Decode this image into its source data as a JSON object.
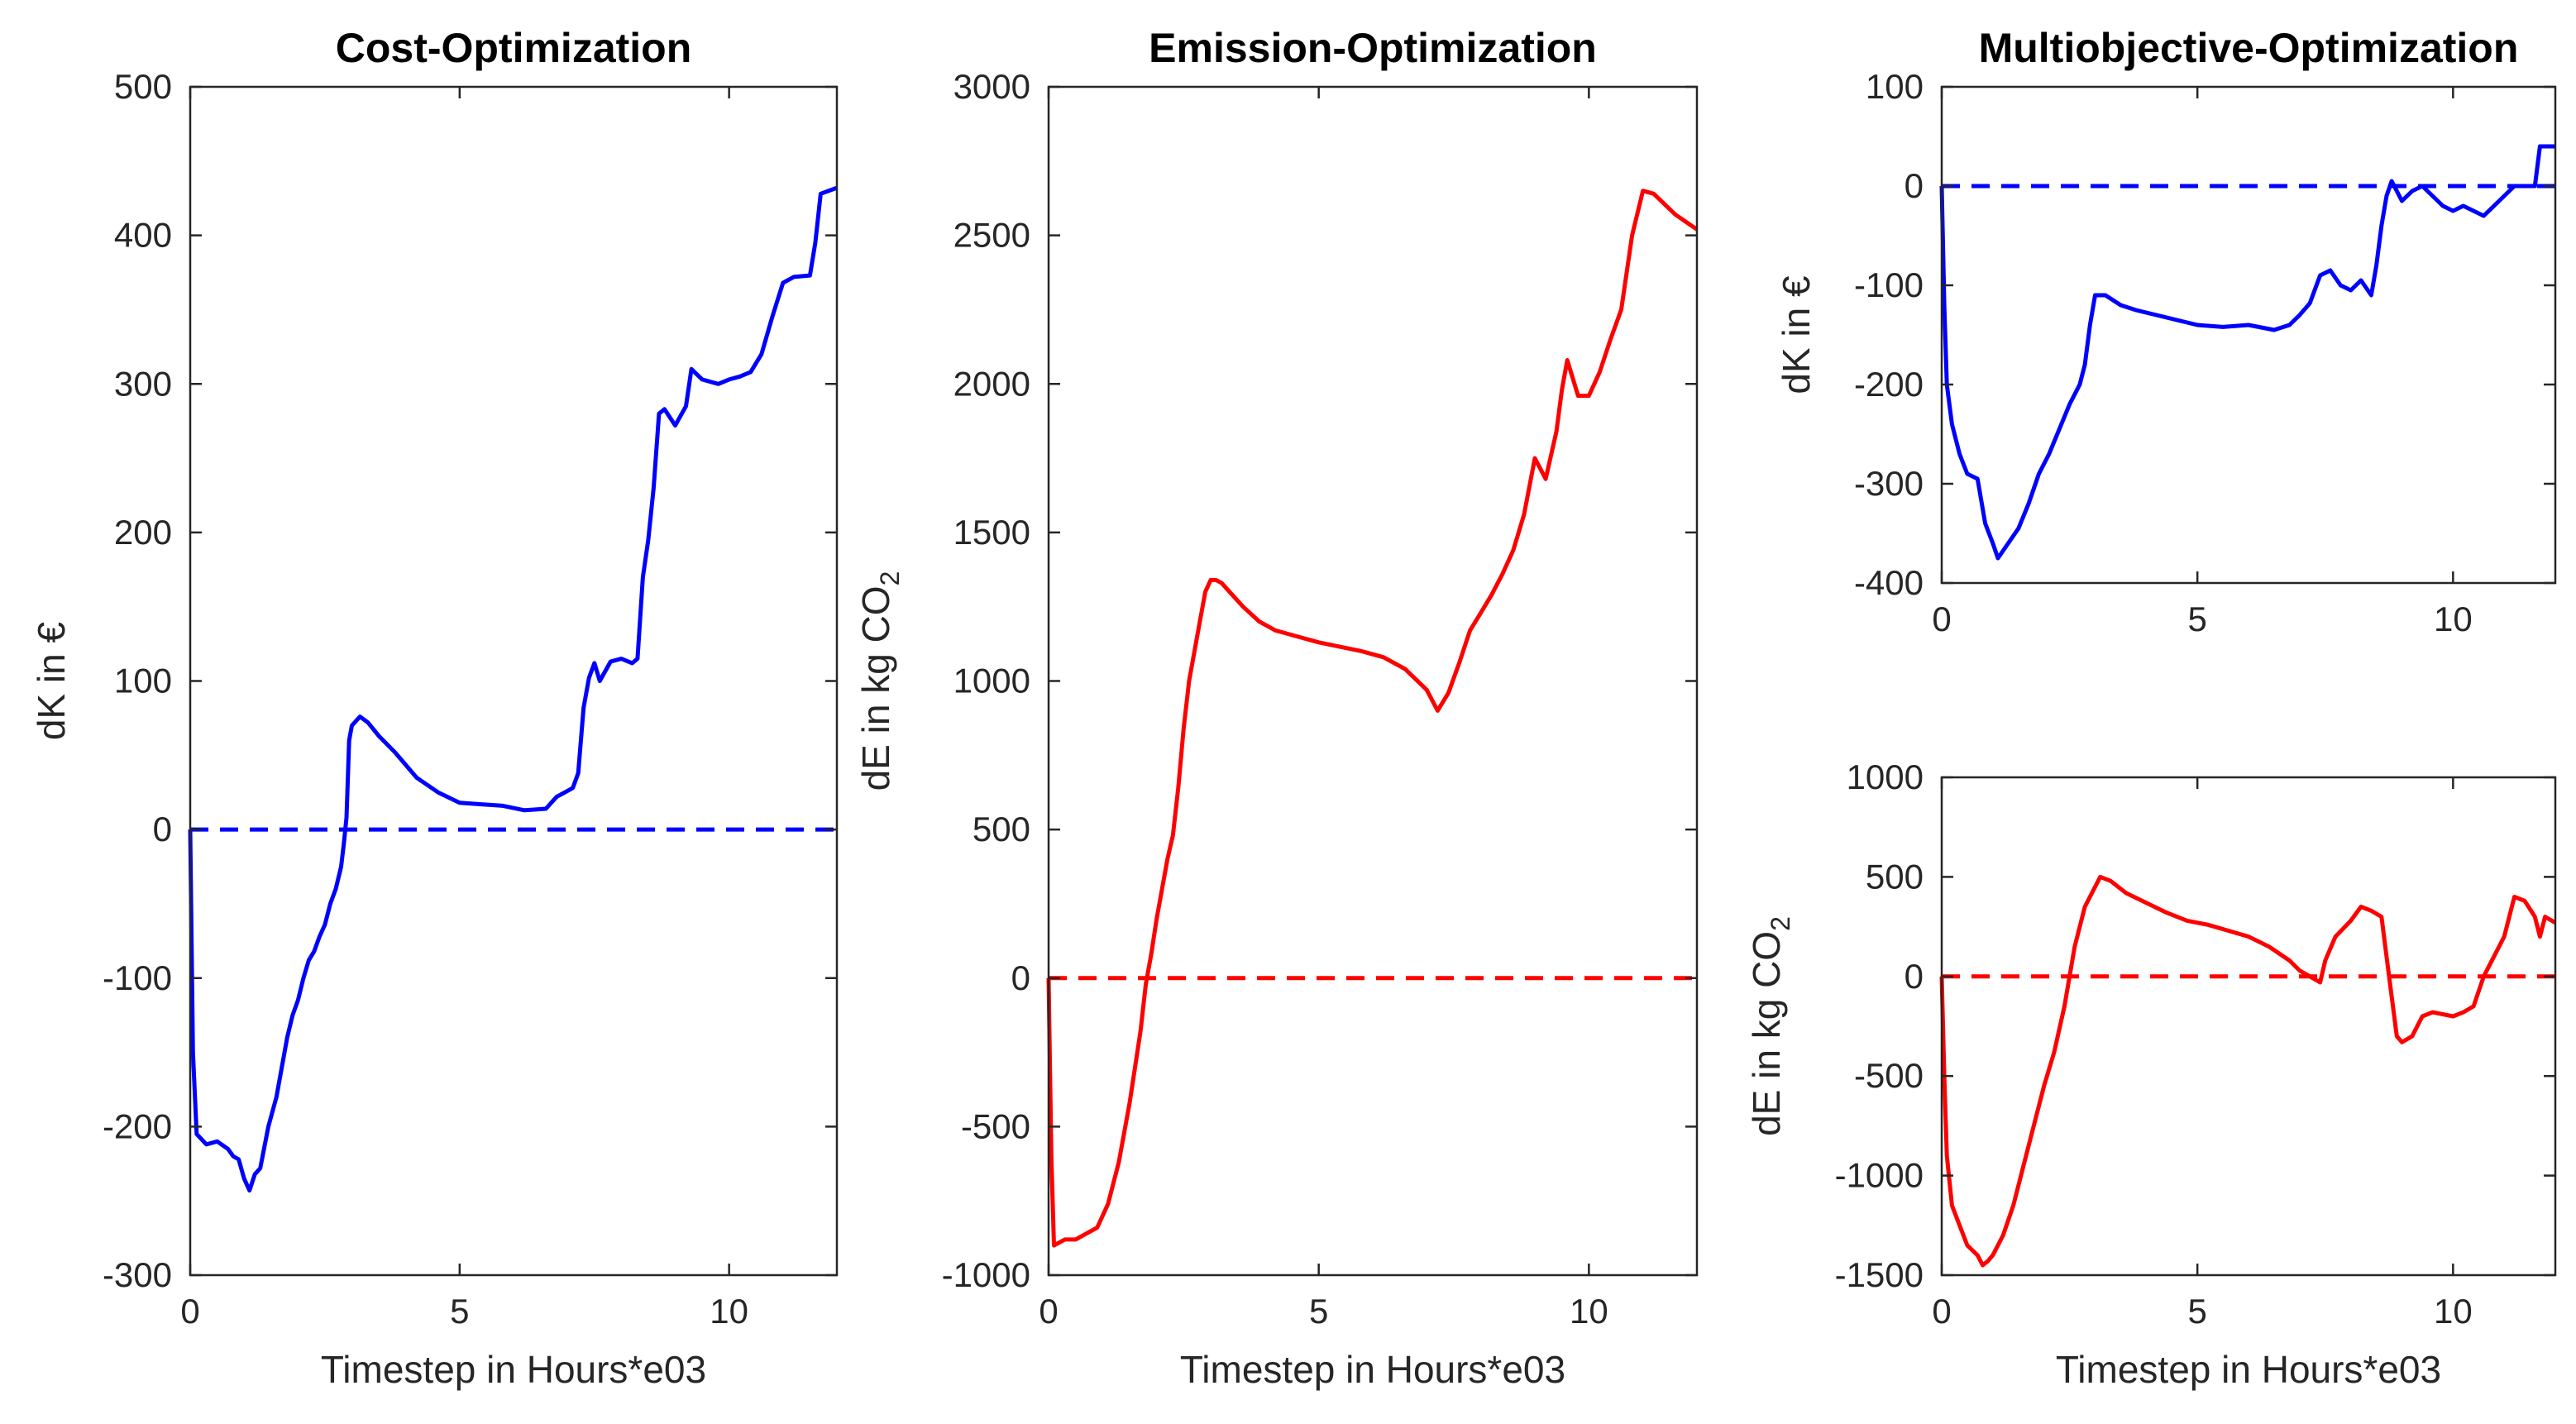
{
  "chart_data": [
    {
      "id": "cost",
      "type": "line",
      "title": "Cost-Optimization",
      "xlabel": "Timestep in Hours*e03",
      "ylabel": "dK in €",
      "xlim": [
        0,
        12
      ],
      "ylim": [
        -300,
        500
      ],
      "xticks": [
        0,
        5,
        10
      ],
      "yticks": [
        -300,
        -200,
        -100,
        0,
        100,
        200,
        300,
        400,
        500
      ],
      "baseline": 0,
      "color": "#0000ff",
      "series": [
        {
          "name": "dK",
          "points": [
            [
              0,
              0
            ],
            [
              0.05,
              -150
            ],
            [
              0.12,
              -205
            ],
            [
              0.3,
              -212
            ],
            [
              0.5,
              -210
            ],
            [
              0.7,
              -215
            ],
            [
              0.8,
              -220
            ],
            [
              0.9,
              -222
            ],
            [
              1.0,
              -235
            ],
            [
              1.1,
              -243
            ],
            [
              1.2,
              -232
            ],
            [
              1.3,
              -228
            ],
            [
              1.45,
              -200
            ],
            [
              1.6,
              -180
            ],
            [
              1.7,
              -160
            ],
            [
              1.8,
              -140
            ],
            [
              1.9,
              -125
            ],
            [
              2.0,
              -115
            ],
            [
              2.1,
              -100
            ],
            [
              2.2,
              -88
            ],
            [
              2.3,
              -82
            ],
            [
              2.4,
              -72
            ],
            [
              2.5,
              -64
            ],
            [
              2.6,
              -50
            ],
            [
              2.7,
              -40
            ],
            [
              2.8,
              -25
            ],
            [
              2.85,
              -10
            ],
            [
              2.9,
              8
            ],
            [
              2.95,
              60
            ],
            [
              3.0,
              70
            ],
            [
              3.15,
              76
            ],
            [
              3.3,
              72
            ],
            [
              3.5,
              63
            ],
            [
              3.8,
              52
            ],
            [
              4.2,
              35
            ],
            [
              4.6,
              25
            ],
            [
              5.0,
              18
            ],
            [
              5.4,
              17
            ],
            [
              5.8,
              16
            ],
            [
              6.2,
              13
            ],
            [
              6.6,
              14
            ],
            [
              6.8,
              22
            ],
            [
              7.0,
              26
            ],
            [
              7.1,
              28
            ],
            [
              7.2,
              38
            ],
            [
              7.3,
              82
            ],
            [
              7.4,
              102
            ],
            [
              7.5,
              112
            ],
            [
              7.6,
              100
            ],
            [
              7.8,
              113
            ],
            [
              8.0,
              115
            ],
            [
              8.2,
              112
            ],
            [
              8.3,
              115
            ],
            [
              8.4,
              170
            ],
            [
              8.5,
              195
            ],
            [
              8.6,
              230
            ],
            [
              8.7,
              280
            ],
            [
              8.8,
              283
            ],
            [
              9.0,
              272
            ],
            [
              9.2,
              285
            ],
            [
              9.3,
              310
            ],
            [
              9.5,
              303
            ],
            [
              9.8,
              300
            ],
            [
              10.0,
              303
            ],
            [
              10.2,
              305
            ],
            [
              10.4,
              308
            ],
            [
              10.6,
              320
            ],
            [
              10.8,
              345
            ],
            [
              11.0,
              368
            ],
            [
              11.2,
              372
            ],
            [
              11.5,
              373
            ],
            [
              11.6,
              395
            ],
            [
              11.7,
              428
            ],
            [
              12.0,
              432
            ]
          ]
        }
      ]
    },
    {
      "id": "emission",
      "type": "line",
      "title": "Emission-Optimization",
      "xlabel": "Timestep in Hours*e03",
      "ylabel": "dE in kg CO",
      "ylabel_sub": "2",
      "xlim": [
        0,
        12
      ],
      "ylim": [
        -1000,
        3000
      ],
      "xticks": [
        0,
        5,
        10
      ],
      "yticks": [
        -1000,
        -500,
        0,
        500,
        1000,
        1500,
        2000,
        2500,
        3000
      ],
      "baseline": 0,
      "color": "#ff0000",
      "series": [
        {
          "name": "dE",
          "points": [
            [
              0,
              0
            ],
            [
              0.05,
              -600
            ],
            [
              0.1,
              -900
            ],
            [
              0.3,
              -880
            ],
            [
              0.5,
              -880
            ],
            [
              0.7,
              -860
            ],
            [
              0.9,
              -840
            ],
            [
              1.1,
              -760
            ],
            [
              1.3,
              -620
            ],
            [
              1.5,
              -420
            ],
            [
              1.7,
              -180
            ],
            [
              1.8,
              -20
            ],
            [
              1.9,
              80
            ],
            [
              2.0,
              200
            ],
            [
              2.1,
              300
            ],
            [
              2.2,
              400
            ],
            [
              2.3,
              480
            ],
            [
              2.4,
              640
            ],
            [
              2.5,
              840
            ],
            [
              2.6,
              1000
            ],
            [
              2.7,
              1100
            ],
            [
              2.8,
              1200
            ],
            [
              2.9,
              1300
            ],
            [
              3.0,
              1340
            ],
            [
              3.1,
              1340
            ],
            [
              3.2,
              1330
            ],
            [
              3.4,
              1290
            ],
            [
              3.6,
              1250
            ],
            [
              3.9,
              1200
            ],
            [
              4.2,
              1170
            ],
            [
              4.6,
              1150
            ],
            [
              5.0,
              1130
            ],
            [
              5.4,
              1115
            ],
            [
              5.8,
              1100
            ],
            [
              6.2,
              1080
            ],
            [
              6.6,
              1040
            ],
            [
              7.0,
              970
            ],
            [
              7.2,
              900
            ],
            [
              7.4,
              960
            ],
            [
              7.6,
              1060
            ],
            [
              7.8,
              1170
            ],
            [
              8.0,
              1230
            ],
            [
              8.2,
              1290
            ],
            [
              8.4,
              1360
            ],
            [
              8.6,
              1440
            ],
            [
              8.8,
              1560
            ],
            [
              9.0,
              1750
            ],
            [
              9.2,
              1680
            ],
            [
              9.4,
              1840
            ],
            [
              9.5,
              1980
            ],
            [
              9.6,
              2080
            ],
            [
              9.8,
              1960
            ],
            [
              10.0,
              1960
            ],
            [
              10.2,
              2040
            ],
            [
              10.4,
              2150
            ],
            [
              10.6,
              2250
            ],
            [
              10.8,
              2500
            ],
            [
              11.0,
              2650
            ],
            [
              11.2,
              2640
            ],
            [
              11.6,
              2570
            ],
            [
              12.0,
              2520
            ]
          ]
        }
      ]
    },
    {
      "id": "multi-cost",
      "type": "line",
      "title": "Multiobjective-Optimization",
      "xlabel": "",
      "ylabel": "dK in €",
      "xlim": [
        0,
        12
      ],
      "ylim": [
        -400,
        100
      ],
      "xticks": [
        0,
        5,
        10
      ],
      "yticks": [
        -400,
        -300,
        -200,
        -100,
        0,
        100
      ],
      "baseline": 0,
      "color": "#0000ff",
      "series": [
        {
          "name": "dK",
          "points": [
            [
              0,
              0
            ],
            [
              0.05,
              -120
            ],
            [
              0.1,
              -200
            ],
            [
              0.2,
              -240
            ],
            [
              0.35,
              -270
            ],
            [
              0.5,
              -290
            ],
            [
              0.7,
              -295
            ],
            [
              0.85,
              -340
            ],
            [
              1.0,
              -360
            ],
            [
              1.1,
              -375
            ],
            [
              1.3,
              -360
            ],
            [
              1.5,
              -345
            ],
            [
              1.7,
              -320
            ],
            [
              1.9,
              -290
            ],
            [
              2.1,
              -270
            ],
            [
              2.3,
              -245
            ],
            [
              2.5,
              -220
            ],
            [
              2.7,
              -200
            ],
            [
              2.8,
              -180
            ],
            [
              2.9,
              -140
            ],
            [
              3.0,
              -110
            ],
            [
              3.2,
              -110
            ],
            [
              3.5,
              -120
            ],
            [
              3.8,
              -125
            ],
            [
              4.2,
              -130
            ],
            [
              4.6,
              -135
            ],
            [
              5.0,
              -140
            ],
            [
              5.5,
              -142
            ],
            [
              6.0,
              -140
            ],
            [
              6.5,
              -145
            ],
            [
              6.8,
              -140
            ],
            [
              7.0,
              -130
            ],
            [
              7.2,
              -118
            ],
            [
              7.4,
              -90
            ],
            [
              7.6,
              -85
            ],
            [
              7.8,
              -100
            ],
            [
              8.0,
              -105
            ],
            [
              8.2,
              -95
            ],
            [
              8.4,
              -110
            ],
            [
              8.5,
              -80
            ],
            [
              8.6,
              -40
            ],
            [
              8.7,
              -10
            ],
            [
              8.8,
              5
            ],
            [
              9.0,
              -15
            ],
            [
              9.2,
              -5
            ],
            [
              9.4,
              0
            ],
            [
              9.6,
              -10
            ],
            [
              9.8,
              -20
            ],
            [
              10.0,
              -25
            ],
            [
              10.2,
              -20
            ],
            [
              10.4,
              -25
            ],
            [
              10.6,
              -30
            ],
            [
              10.8,
              -20
            ],
            [
              11.0,
              -10
            ],
            [
              11.2,
              0
            ],
            [
              11.4,
              0
            ],
            [
              11.6,
              0
            ],
            [
              11.7,
              40
            ],
            [
              12.0,
              40
            ]
          ]
        }
      ]
    },
    {
      "id": "multi-emission",
      "type": "line",
      "title": "",
      "xlabel": "Timestep in Hours*e03",
      "ylabel": "dE in kg CO",
      "ylabel_sub": "2",
      "xlim": [
        0,
        12
      ],
      "ylim": [
        -1500,
        1000
      ],
      "xticks": [
        0,
        5,
        10
      ],
      "yticks": [
        -1500,
        -1000,
        -500,
        0,
        500,
        1000
      ],
      "baseline": 0,
      "color": "#ff0000",
      "series": [
        {
          "name": "dE",
          "points": [
            [
              0,
              0
            ],
            [
              0.05,
              -500
            ],
            [
              0.1,
              -900
            ],
            [
              0.2,
              -1150
            ],
            [
              0.35,
              -1250
            ],
            [
              0.5,
              -1350
            ],
            [
              0.7,
              -1400
            ],
            [
              0.8,
              -1450
            ],
            [
              0.9,
              -1430
            ],
            [
              1.0,
              -1400
            ],
            [
              1.2,
              -1300
            ],
            [
              1.4,
              -1150
            ],
            [
              1.6,
              -950
            ],
            [
              1.8,
              -750
            ],
            [
              2.0,
              -550
            ],
            [
              2.2,
              -380
            ],
            [
              2.4,
              -150
            ],
            [
              2.5,
              0
            ],
            [
              2.6,
              150
            ],
            [
              2.8,
              350
            ],
            [
              3.0,
              450
            ],
            [
              3.1,
              500
            ],
            [
              3.3,
              480
            ],
            [
              3.6,
              420
            ],
            [
              4.0,
              370
            ],
            [
              4.4,
              320
            ],
            [
              4.8,
              280
            ],
            [
              5.2,
              260
            ],
            [
              5.6,
              230
            ],
            [
              6.0,
              200
            ],
            [
              6.4,
              150
            ],
            [
              6.8,
              80
            ],
            [
              7.0,
              30
            ],
            [
              7.2,
              0
            ],
            [
              7.4,
              -30
            ],
            [
              7.5,
              80
            ],
            [
              7.7,
              200
            ],
            [
              8.0,
              280
            ],
            [
              8.2,
              350
            ],
            [
              8.4,
              330
            ],
            [
              8.6,
              300
            ],
            [
              8.7,
              100
            ],
            [
              8.8,
              -100
            ],
            [
              8.9,
              -300
            ],
            [
              9.0,
              -330
            ],
            [
              9.2,
              -300
            ],
            [
              9.4,
              -200
            ],
            [
              9.6,
              -180
            ],
            [
              10.0,
              -200
            ],
            [
              10.2,
              -180
            ],
            [
              10.4,
              -150
            ],
            [
              10.6,
              0
            ],
            [
              10.8,
              100
            ],
            [
              11.0,
              200
            ],
            [
              11.2,
              400
            ],
            [
              11.4,
              380
            ],
            [
              11.6,
              300
            ],
            [
              11.7,
              200
            ],
            [
              11.8,
              300
            ],
            [
              12.0,
              270
            ]
          ]
        }
      ]
    }
  ]
}
